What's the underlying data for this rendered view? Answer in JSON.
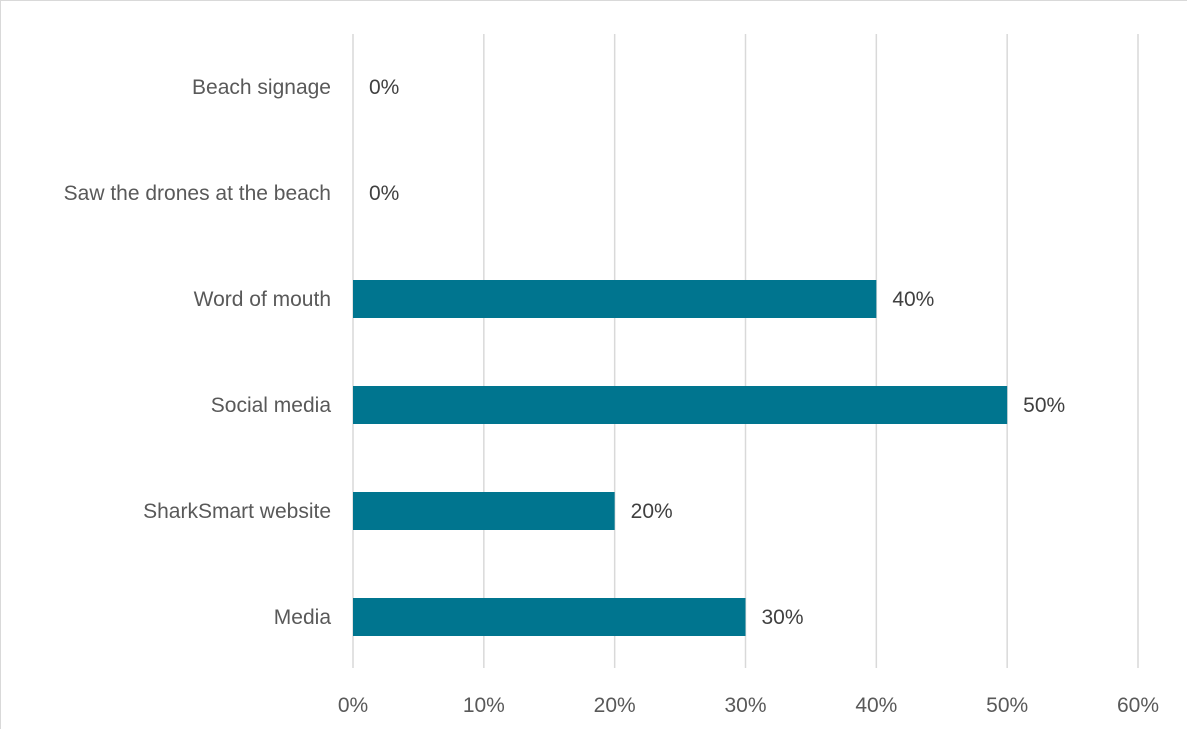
{
  "chart_data": {
    "type": "bar",
    "orientation": "horizontal",
    "categories": [
      "Beach signage",
      "Saw the drones at the beach",
      "Word of mouth",
      "Social media",
      "SharkSmart website",
      "Media"
    ],
    "values": [
      0,
      0,
      40,
      50,
      20,
      30
    ],
    "data_labels": [
      "0%",
      "0%",
      "40%",
      "50%",
      "20%",
      "30%"
    ],
    "x_ticks": [
      0,
      10,
      20,
      30,
      40,
      50,
      60
    ],
    "x_tick_labels": [
      "0%",
      "10%",
      "20%",
      "30%",
      "40%",
      "50%",
      "60%"
    ],
    "xlim": [
      0,
      60
    ],
    "grid": "vertical",
    "legend": "none",
    "bar_color": "#00758f",
    "title": "",
    "xlabel": "",
    "ylabel": ""
  }
}
